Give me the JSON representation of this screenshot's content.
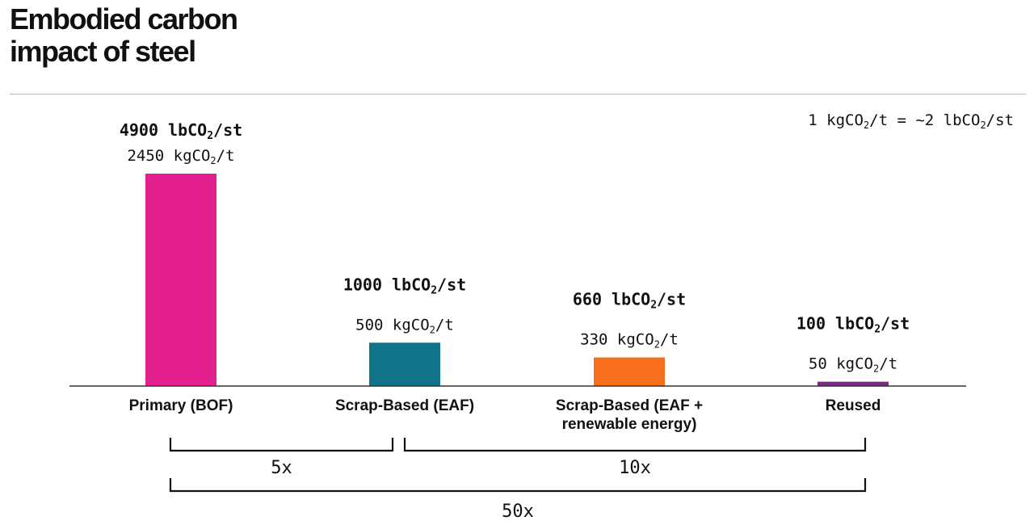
{
  "title_lines": [
    "Embodied carbon",
    "impact of steel"
  ],
  "chart_data": {
    "type": "bar",
    "title": "Embodied carbon impact of steel",
    "conversion_note": {
      "prefix": "1 kgCO",
      "sub1": "2",
      "mid": "/t = ~2 lbCO",
      "sub2": "2",
      "suffix": "/st"
    },
    "unit": "kgCO2/t",
    "ylim": [
      0,
      2450
    ],
    "categories": [
      [
        "Primary (BOF)"
      ],
      [
        "Scrap-Based (EAF)"
      ],
      [
        "Scrap-Based (EAF +",
        "renewable energy)"
      ],
      [
        "Reused"
      ]
    ],
    "values_kg_per_t": [
      2450,
      500,
      330,
      50
    ],
    "values_lb_per_st": [
      4900,
      1000,
      660,
      100
    ],
    "colors": [
      "#e21f8d",
      "#117388",
      "#f8701e",
      "#7a2a82"
    ],
    "comparisons": [
      {
        "label": "5x",
        "from": 0,
        "to": 1
      },
      {
        "label": "10x",
        "from": 1,
        "to": 3
      },
      {
        "label": "50x",
        "from": 0,
        "to": 3
      }
    ]
  }
}
